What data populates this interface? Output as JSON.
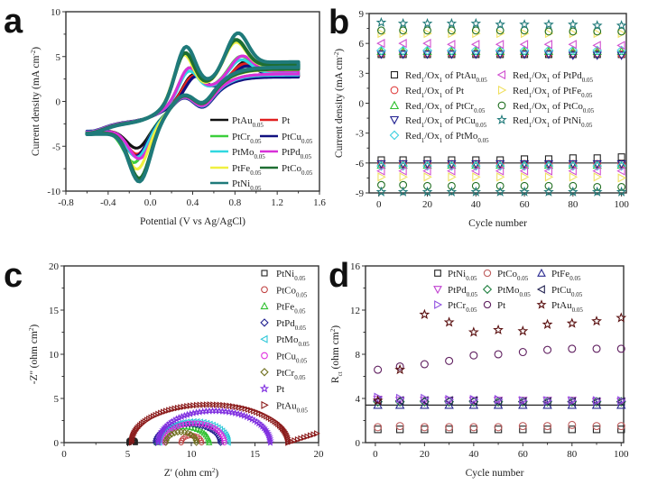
{
  "chart_data": [
    {
      "panel": "a",
      "type": "line",
      "xlabel": "Potential (V vs Ag/AgCl)",
      "ylabel": "Current density (mA cm_{-2})",
      "xlim": [
        -0.8,
        1.6
      ],
      "ylim": [
        -10,
        10
      ],
      "xticks": [
        -0.8,
        -0.4,
        0.0,
        0.4,
        0.8,
        1.2,
        1.6
      ],
      "xtick_labels": [
        "-0.8",
        "-0.4",
        "0.0",
        "0.4",
        "0.8",
        "1.2",
        "1.6"
      ],
      "yticks": [
        -10,
        -5,
        0,
        5,
        10
      ],
      "ytick_labels": [
        "-10",
        "-5",
        "0",
        "5",
        "10"
      ],
      "scan_range": [
        -0.6,
        1.4
      ],
      "legend_placement": "bottom-right",
      "series": [
        {
          "name": "PtAu_{0.05}",
          "color": "#111111",
          "ox1": [
            0.4,
            5.0
          ],
          "ox2": [
            0.9,
            6.0
          ],
          "red1": [
            -0.12,
            -5.3
          ]
        },
        {
          "name": "Pt",
          "color": "#e02020",
          "ox1": [
            0.4,
            4.9
          ],
          "ox2": [
            0.88,
            5.8
          ],
          "red1": [
            -0.12,
            -6.0
          ]
        },
        {
          "name": "PtCr_{0.05}",
          "color": "#3ccf3c",
          "ox1": [
            0.36,
            5.8
          ],
          "ox2": [
            0.85,
            6.5
          ],
          "red1": [
            -0.15,
            -6.8
          ]
        },
        {
          "name": "PtCu_{0.05}",
          "color": "#101080",
          "ox1": [
            0.42,
            4.8
          ],
          "ox2": [
            0.9,
            5.6
          ],
          "red1": [
            -0.13,
            -6.2
          ]
        },
        {
          "name": "PtMo_{0.05}",
          "color": "#30d8e0",
          "ox1": [
            0.36,
            5.5
          ],
          "ox2": [
            0.85,
            6.2
          ],
          "red1": [
            -0.12,
            -6.3
          ]
        },
        {
          "name": "PtPd_{0.05}",
          "color": "#d830d8",
          "ox1": [
            0.36,
            5.8
          ],
          "ox2": [
            0.86,
            6.5
          ],
          "red1": [
            -0.1,
            -6.5
          ]
        },
        {
          "name": "PtFe_{0.05}",
          "color": "#f0f040",
          "ox1": [
            0.31,
            7.2
          ],
          "ox2": [
            0.8,
            7.8
          ],
          "red1": [
            -0.12,
            -7.5
          ]
        },
        {
          "name": "PtCo_{0.05}",
          "color": "#1e6e32",
          "ox1": [
            0.32,
            7.3
          ],
          "ox2": [
            0.8,
            8.0
          ],
          "red1": [
            -0.1,
            -8.6
          ]
        },
        {
          "name": "PtNi_{0.05}",
          "color": "#1f7a7a",
          "ox1": [
            0.33,
            7.8
          ],
          "ox2": [
            0.82,
            8.5
          ],
          "red1": [
            -0.1,
            -8.9
          ]
        }
      ]
    },
    {
      "panel": "b",
      "type": "scatter",
      "xlabel": "Cycle number",
      "ylabel": "Current density (mA cm_{-2})",
      "xlim": [
        -4,
        102
      ],
      "ylim": [
        -9,
        9
      ],
      "xticks": [
        0,
        20,
        40,
        60,
        80,
        100
      ],
      "xtick_labels": [
        "0",
        "20",
        "40",
        "60",
        "80",
        "100"
      ],
      "yticks": [
        -9,
        -6,
        -3,
        0,
        3,
        6,
        9
      ],
      "ytick_labels": [
        "-9",
        "-6",
        "-3",
        "0",
        "3",
        "6",
        "9"
      ],
      "reference_line_y": -6,
      "x": [
        1,
        10,
        20,
        30,
        40,
        50,
        60,
        70,
        80,
        90,
        100
      ],
      "legend_placement": "center",
      "series": [
        {
          "name": "Red_{1}/Ox_{1} of PtAu_{0.05}",
          "marker": "square",
          "color": "#222222",
          "ox": [
            4.9,
            4.9,
            4.9,
            4.9,
            4.9,
            4.9,
            4.9,
            4.9,
            4.9,
            4.9,
            4.9
          ],
          "red": [
            -5.7,
            -5.7,
            -5.7,
            -5.7,
            -5.7,
            -5.7,
            -5.6,
            -5.6,
            -5.5,
            -5.5,
            -5.4
          ]
        },
        {
          "name": "Red_{1}/Ox_{1} of Pt",
          "marker": "circle",
          "color": "#e04040",
          "ox": [
            5.0,
            5.0,
            5.0,
            5.0,
            5.0,
            5.0,
            5.0,
            5.0,
            5.0,
            5.0,
            4.9
          ],
          "red": [
            -6.1,
            -6.1,
            -6.1,
            -6.1,
            -6.1,
            -6.1,
            -6.1,
            -6.1,
            -6.1,
            -6.1,
            -6.1
          ]
        },
        {
          "name": "Red_{1}/Ox_{1} of PtCr_{0.05}",
          "marker": "triangle-up",
          "color": "#30c030",
          "ox": [
            5.2,
            5.2,
            5.2,
            5.2,
            5.2,
            5.2,
            5.2,
            5.2,
            5.2,
            5.2,
            5.2
          ],
          "red": [
            -6.2,
            -6.2,
            -6.2,
            -6.2,
            -6.2,
            -6.2,
            -6.2,
            -6.2,
            -6.2,
            -6.2,
            -6.2
          ]
        },
        {
          "name": "Red_{1}/Ox_{1} of PtCu_{0.05}",
          "marker": "triangle-down",
          "color": "#202090",
          "ox": [
            4.9,
            4.9,
            4.9,
            4.9,
            4.9,
            4.9,
            4.9,
            4.9,
            4.8,
            4.8,
            4.8
          ],
          "red": [
            -6.1,
            -6.1,
            -6.1,
            -6.1,
            -6.1,
            -6.1,
            -6.1,
            -6.1,
            -6.1,
            -6.1,
            -6.1
          ]
        },
        {
          "name": "Red_{1}/Ox_{1} of PtMo_{0.05}",
          "marker": "diamond",
          "color": "#40d0e0",
          "ox": [
            5.3,
            5.3,
            5.3,
            5.3,
            5.3,
            5.3,
            5.3,
            5.3,
            5.3,
            5.3,
            5.3
          ],
          "red": [
            -6.3,
            -6.3,
            -6.3,
            -6.3,
            -6.3,
            -6.3,
            -6.3,
            -6.3,
            -6.3,
            -6.3,
            -6.3
          ]
        },
        {
          "name": "Red_{1}/Ox_{1} of PtPd_{0.05}",
          "marker": "triangle-left",
          "color": "#d050d0",
          "ox": [
            6.0,
            6.0,
            6.0,
            5.9,
            5.9,
            5.9,
            5.9,
            5.9,
            5.9,
            5.8,
            5.8
          ],
          "red": [
            -6.8,
            -6.8,
            -6.8,
            -6.8,
            -6.8,
            -6.8,
            -6.8,
            -6.8,
            -6.8,
            -6.8,
            -6.8
          ]
        },
        {
          "name": "Red_{1}/Ox_{1} of PtFe_{0.05}",
          "marker": "triangle-right",
          "color": "#f0e060",
          "ox": [
            7.0,
            7.0,
            7.0,
            7.0,
            7.0,
            7.0,
            7.0,
            7.0,
            7.0,
            7.0,
            7.0
          ],
          "red": [
            -7.4,
            -7.4,
            -7.4,
            -7.4,
            -7.4,
            -7.4,
            -7.4,
            -7.4,
            -7.4,
            -7.4,
            -7.5
          ]
        },
        {
          "name": "Red_{1}/Ox_{1} of PtCo_{0.05}",
          "marker": "circle",
          "color": "#206e20",
          "ox": [
            7.3,
            7.3,
            7.3,
            7.3,
            7.3,
            7.3,
            7.3,
            7.2,
            7.2,
            7.2,
            7.2
          ],
          "red": [
            -8.2,
            -8.2,
            -8.3,
            -8.3,
            -8.3,
            -8.3,
            -8.3,
            -8.3,
            -8.3,
            -8.4,
            -8.4
          ]
        },
        {
          "name": "Red_{1}/Ox_{1} of PtNi_{0.05}",
          "marker": "star",
          "color": "#207a7a",
          "ox": [
            8.1,
            8.0,
            8.0,
            8.0,
            8.0,
            7.9,
            7.9,
            7.9,
            7.9,
            7.8,
            7.8
          ],
          "red": [
            -8.9,
            -8.9,
            -8.9,
            -8.9,
            -8.9,
            -8.9,
            -8.9,
            -8.9,
            -8.9,
            -8.9,
            -8.9
          ]
        }
      ]
    },
    {
      "panel": "c",
      "type": "scatter",
      "xlabel": "Z' (ohm cm_{2})",
      "ylabel": "-Z'' (ohm cm_{2})",
      "xlim": [
        0,
        20
      ],
      "ylim": [
        0,
        20
      ],
      "xticks": [
        0,
        5,
        10,
        15,
        20
      ],
      "xtick_labels": [
        "0",
        "5",
        "10",
        "15",
        "20"
      ],
      "yticks": [
        0,
        5,
        10,
        15,
        20
      ],
      "ytick_labels": [
        "0",
        "5",
        "10",
        "15",
        "20"
      ],
      "legend_placement": "top-right",
      "series": [
        {
          "name": "PtNi_{0.05}",
          "marker": "square",
          "color": "#222222",
          "z_start": 5.1,
          "z_end": 5.6,
          "z_max": 0.3
        },
        {
          "name": "PtCo_{0.05}",
          "marker": "circle",
          "color": "#c04040",
          "z_start": 9.2,
          "z_end": 10.8,
          "z_max": 0.8
        },
        {
          "name": "PtFe_{0.05}",
          "marker": "triangle-up",
          "color": "#30c030",
          "z_start": 7.3,
          "z_end": 11.4,
          "z_max": 1.8
        },
        {
          "name": "PtPd_{0.05}",
          "marker": "diamond",
          "color": "#202090",
          "z_start": 7.2,
          "z_end": 12.3,
          "z_max": 2.1
        },
        {
          "name": "PtMo_{0.05}",
          "marker": "triangle-left",
          "color": "#30c8d8",
          "z_start": 7.5,
          "z_end": 12.9,
          "z_max": 2.4
        },
        {
          "name": "PtCu_{0.05}",
          "marker": "circle",
          "color": "#e030e0",
          "z_start": 7.9,
          "z_end": 12.6,
          "z_max": 2.2
        },
        {
          "name": "PtCr_{0.05}",
          "marker": "diamond",
          "color": "#707020",
          "z_start": 8.0,
          "z_end": 10.4,
          "z_max": 1.2
        },
        {
          "name": "Pt",
          "marker": "star",
          "color": "#8030e0",
          "z_start": 7.4,
          "z_end": 16.2,
          "z_max": 3.6
        },
        {
          "name": "PtAu_{0.05}",
          "marker": "triangle-right",
          "color": "#8b1a1a",
          "z_start": 5.3,
          "z_end": 17.6,
          "z_max": 4.3,
          "tail_end": 20,
          "tail_z": 1.1
        }
      ]
    },
    {
      "panel": "d",
      "type": "scatter",
      "xlabel": "Cycle number",
      "ylabel": "R_{ct} (ohm cm_{2})",
      "xlim": [
        -4,
        101
      ],
      "ylim": [
        0,
        16
      ],
      "xticks": [
        0,
        20,
        40,
        60,
        80,
        100
      ],
      "xtick_labels": [
        "0",
        "20",
        "40",
        "60",
        "80",
        "100"
      ],
      "yticks": [
        0,
        4,
        8,
        12,
        16
      ],
      "ytick_labels": [
        "0",
        "4",
        "8",
        "12",
        "16"
      ],
      "reference_line_y": 3.4,
      "x": [
        1,
        10,
        20,
        30,
        40,
        50,
        60,
        70,
        80,
        90,
        100
      ],
      "legend_placement": "top",
      "series": [
        {
          "name": "PtNi_{0.05}",
          "marker": "square",
          "color": "#222222",
          "values": [
            1.2,
            1.2,
            1.2,
            1.2,
            1.2,
            1.2,
            1.2,
            1.2,
            1.2,
            1.2,
            1.2
          ]
        },
        {
          "name": "PtCo_{0.05}",
          "marker": "circle",
          "color": "#c06060",
          "values": [
            1.4,
            1.5,
            1.4,
            1.4,
            1.4,
            1.4,
            1.5,
            1.5,
            1.6,
            1.5,
            1.5
          ]
        },
        {
          "name": "PtFe_{0.05}",
          "marker": "triangle-up",
          "color": "#2a2a90",
          "values": [
            3.4,
            3.4,
            3.4,
            3.4,
            3.4,
            3.4,
            3.4,
            3.4,
            3.4,
            3.4,
            3.4
          ]
        },
        {
          "name": "PtPd_{0.05}",
          "marker": "triangle-down",
          "color": "#c040d0",
          "values": [
            3.9,
            3.8,
            3.8,
            3.8,
            3.8,
            3.8,
            3.8,
            3.8,
            3.8,
            3.7,
            3.7
          ]
        },
        {
          "name": "PtMo_{0.05}",
          "marker": "diamond",
          "color": "#208040",
          "values": [
            3.7,
            3.7,
            3.7,
            3.7,
            3.7,
            3.7,
            3.7,
            3.7,
            3.7,
            3.7,
            3.7
          ]
        },
        {
          "name": "PtCu_{0.05}",
          "marker": "triangle-left",
          "color": "#202050",
          "values": [
            3.8,
            3.8,
            3.8,
            3.8,
            3.8,
            3.7,
            3.7,
            3.7,
            3.7,
            3.7,
            3.7
          ]
        },
        {
          "name": "PtCr_{0.05}",
          "marker": "triangle-right",
          "color": "#9050e0",
          "values": [
            4.1,
            4.0,
            4.0,
            3.9,
            3.9,
            3.9,
            3.8,
            3.8,
            3.8,
            3.8,
            3.8
          ]
        },
        {
          "name": "Pt",
          "marker": "circle",
          "color": "#602060",
          "values": [
            6.6,
            6.9,
            7.1,
            7.4,
            7.9,
            8.0,
            8.2,
            8.4,
            8.5,
            8.5,
            8.5
          ]
        },
        {
          "name": "PtAu_{0.05}",
          "marker": "star",
          "color": "#5a1010",
          "values": [
            3.8,
            6.6,
            11.6,
            10.9,
            10.0,
            10.2,
            10.1,
            10.7,
            10.8,
            11.0,
            11.3
          ]
        }
      ]
    }
  ],
  "panel_labels": [
    "a",
    "b",
    "c",
    "d"
  ]
}
